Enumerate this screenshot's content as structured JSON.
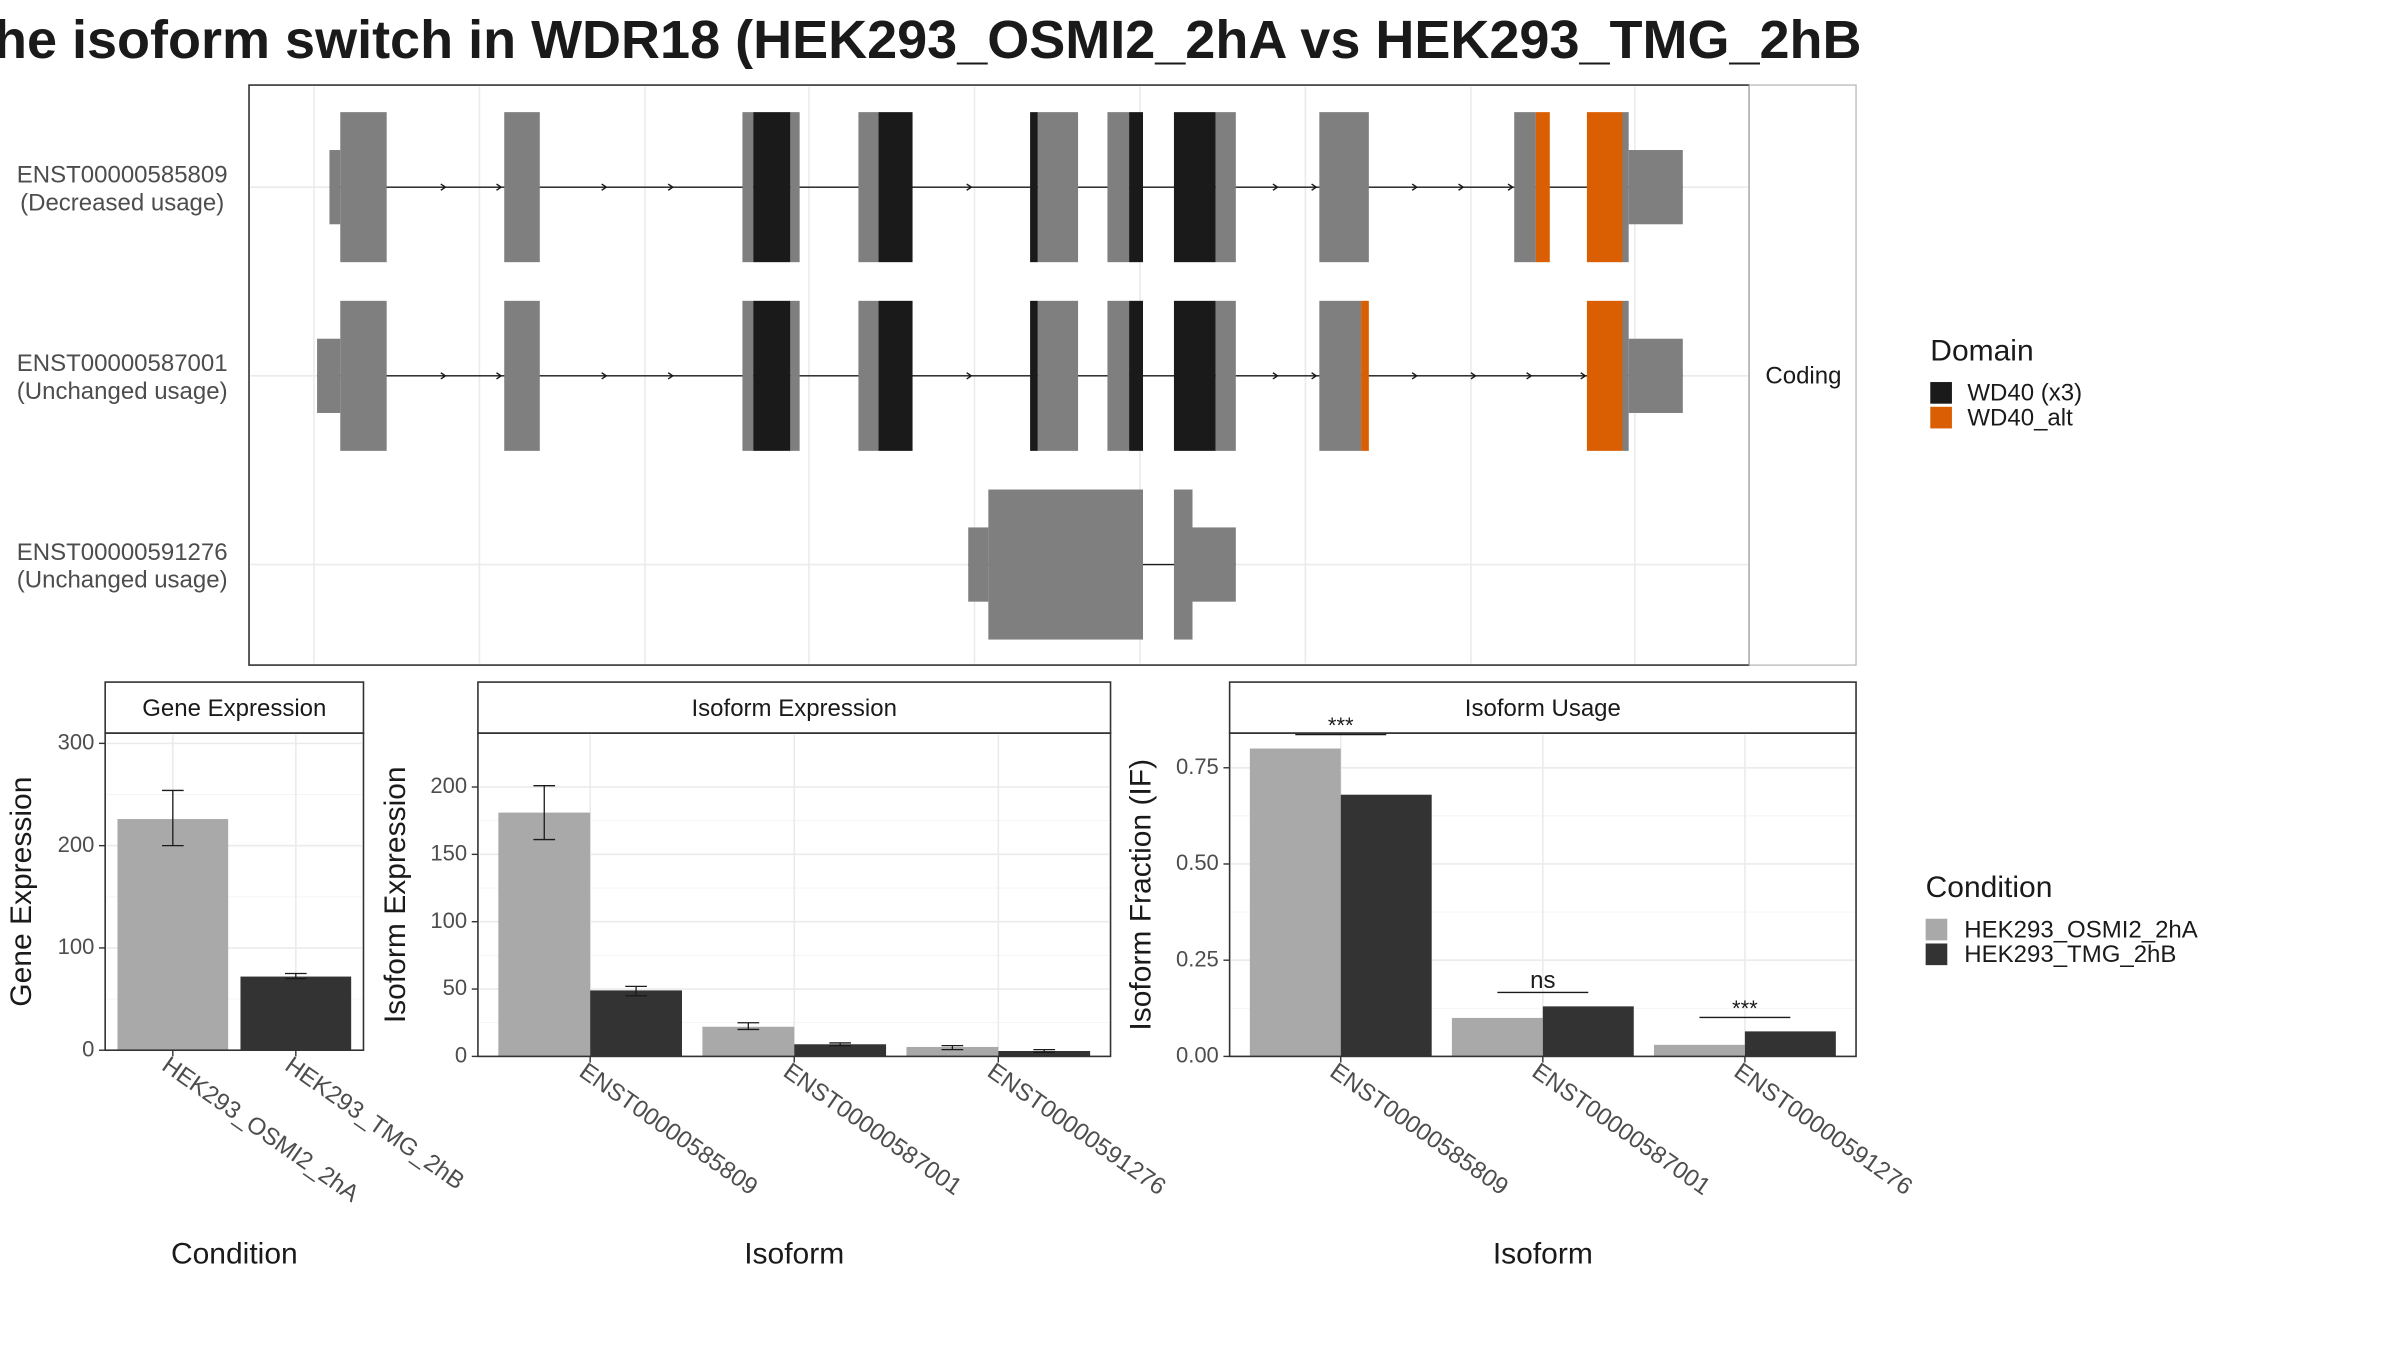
{
  "title": "he isoform switch in WDR18 (HEK293_OSMI2_2hA vs HEK293_TMG_2hB",
  "colors": {
    "exon": "#7f7f7f",
    "wd40_x3": "#1a1a1a",
    "wd40_alt": "#d95f02",
    "cond_a": "#a9a9a9",
    "cond_b": "#333333"
  },
  "chart_data": [
    {
      "type": "gene-structure",
      "strip_label": "Coding",
      "transcripts": [
        {
          "id": "ENST00000585809",
          "usage": "(Decreased usage)"
        },
        {
          "id": "ENST00000587001",
          "usage": "(Unchanged usage)"
        },
        {
          "id": "ENST00000591276",
          "usage": "(Unchanged usage)"
        }
      ],
      "legend_title": "Domain",
      "legend": [
        {
          "label": "WD40 (x3)",
          "color": "#1a1a1a"
        },
        {
          "label": "WD40_alt",
          "color": "#d95f02"
        }
      ]
    },
    {
      "type": "bar",
      "panel_title": "Gene Expression",
      "xlabel": "Condition",
      "ylabel": "Gene Expression",
      "ylim": [
        0,
        310
      ],
      "yticks": [
        0,
        100,
        200,
        300
      ],
      "categories": [
        "HEK293_OSMI2_2hA",
        "HEK293_TMG_2hB"
      ],
      "values": [
        226,
        72
      ],
      "errors": [
        [
          200,
          254
        ],
        [
          70,
          75
        ]
      ],
      "grid": true
    },
    {
      "type": "bar",
      "panel_title": "Isoform Expression",
      "xlabel": "Isoform",
      "ylabel": "Isoform Expression",
      "ylim": [
        0,
        240
      ],
      "yticks": [
        0,
        50,
        100,
        150,
        200
      ],
      "categories": [
        "ENST00000585809",
        "ENST00000587001",
        "ENST00000591276"
      ],
      "series": [
        {
          "name": "HEK293_OSMI2_2hA",
          "values": [
            181,
            22,
            7
          ],
          "errors": [
            [
              161,
              201
            ],
            [
              20,
              25
            ],
            [
              5,
              8
            ]
          ]
        },
        {
          "name": "HEK293_TMG_2hB",
          "values": [
            49,
            9,
            4
          ],
          "errors": [
            [
              45,
              52
            ],
            [
              8,
              10
            ],
            [
              3,
              5
            ]
          ]
        }
      ],
      "grid": true
    },
    {
      "type": "bar",
      "panel_title": "Isoform Usage",
      "xlabel": "Isoform",
      "ylabel": "Isoform Fraction (IF)",
      "ylim": [
        0,
        0.84
      ],
      "yticks": [
        "0.00",
        "0.25",
        "0.50",
        "0.75"
      ],
      "categories": [
        "ENST00000585809",
        "ENST00000587001",
        "ENST00000591276"
      ],
      "series": [
        {
          "name": "HEK293_OSMI2_2hA",
          "values": [
            0.8,
            0.1,
            0.03
          ]
        },
        {
          "name": "HEK293_TMG_2hB",
          "values": [
            0.68,
            0.13,
            0.065
          ]
        }
      ],
      "significance": [
        "***",
        "ns",
        "***"
      ],
      "grid": true,
      "legend_title": "Condition",
      "legend": [
        {
          "label": "HEK293_OSMI2_2hA",
          "color": "#a9a9a9"
        },
        {
          "label": "HEK293_TMG_2hB",
          "color": "#333333"
        }
      ]
    }
  ]
}
